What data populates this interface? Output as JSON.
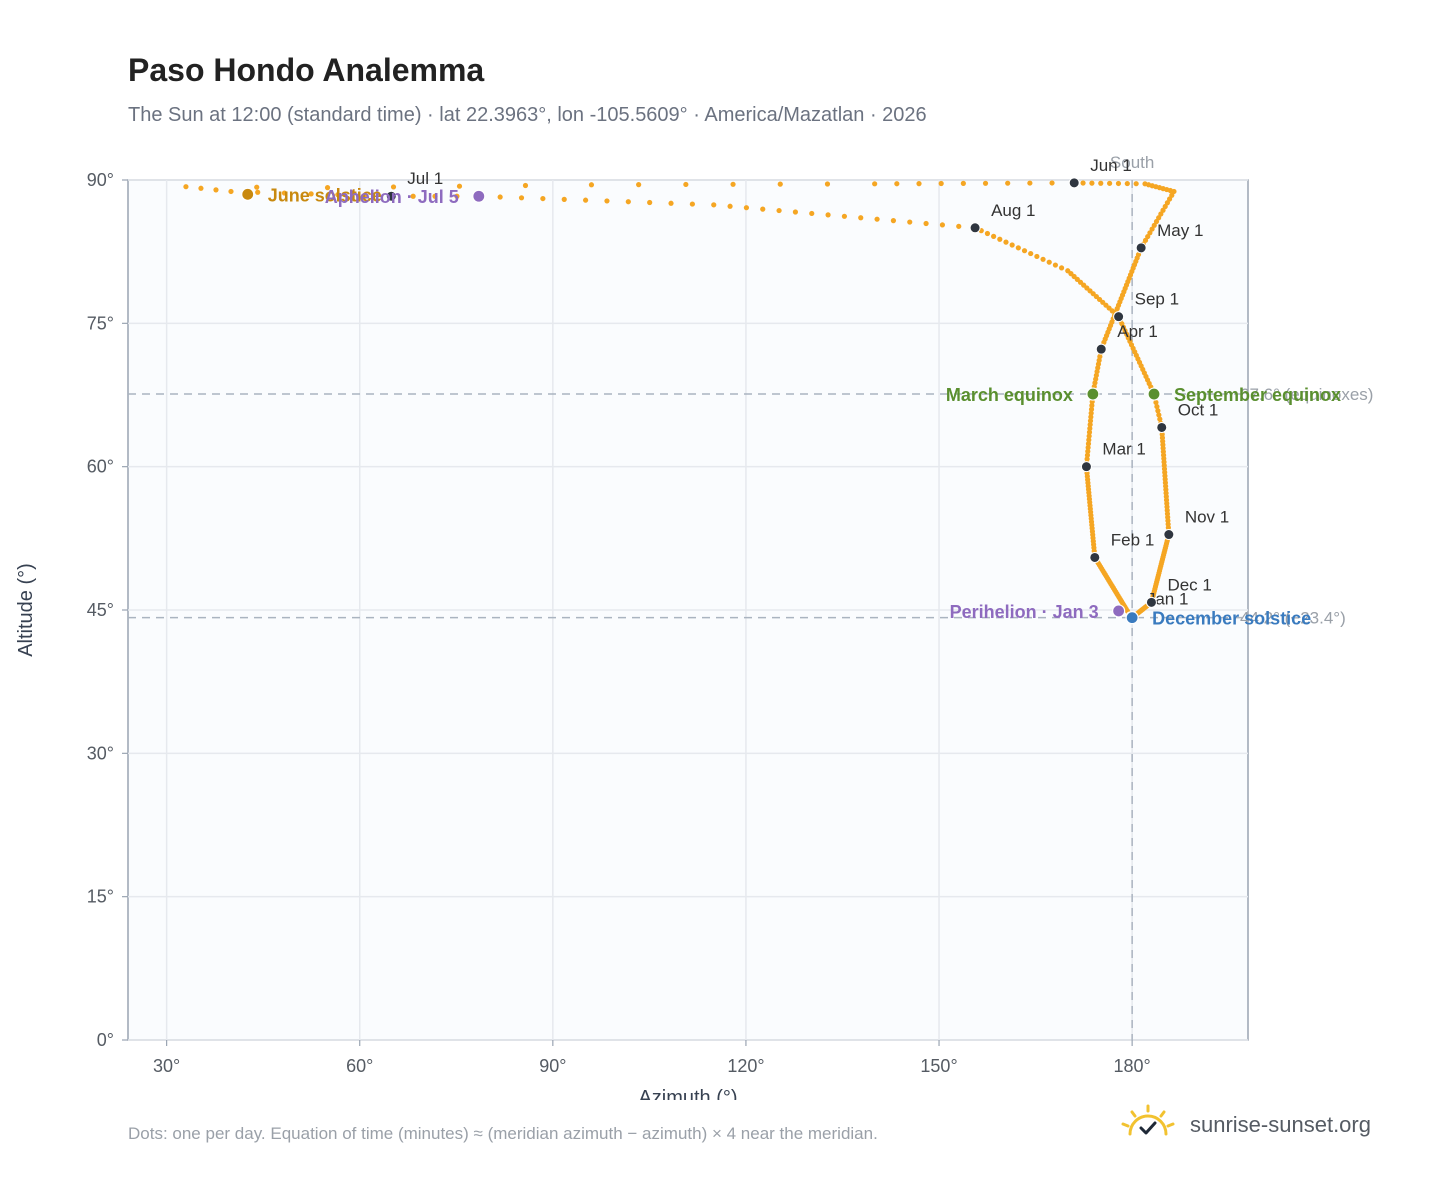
{
  "chart_data": {
    "type": "scatter",
    "title": "Paso Hondo Analemma",
    "subtitle": "The Sun at 12:00 (standard time) · lat 22.3963°, lon -105.5609° · America/Mazatlan · 2026",
    "xlabel": "Azimuth (°)",
    "ylabel": "Altitude (°)",
    "xlim": [
      24,
      198
    ],
    "ylim": [
      0,
      90
    ],
    "grid": true,
    "x_ticks": [
      {
        "value": 30,
        "label": "30°"
      },
      {
        "value": 60,
        "label": "60°"
      },
      {
        "value": 90,
        "label": "90°"
      },
      {
        "value": 120,
        "label": "120°"
      },
      {
        "value": 150,
        "label": "150°"
      },
      {
        "value": 180,
        "label": "180°"
      }
    ],
    "y_ticks": [
      {
        "value": 0,
        "label": "0°"
      },
      {
        "value": 15,
        "label": "15°"
      },
      {
        "value": 30,
        "label": "30°"
      },
      {
        "value": 45,
        "label": "45°"
      },
      {
        "value": 60,
        "label": "60°"
      },
      {
        "value": 75,
        "label": "75°"
      },
      {
        "value": 90,
        "label": "90°"
      }
    ],
    "series_color": "#f5a623",
    "path_anchors": [
      {
        "day": 0,
        "az": 179.8,
        "alt": 44.3
      },
      {
        "day": 31,
        "az": 174.2,
        "alt": 50.5
      },
      {
        "day": 59,
        "az": 172.9,
        "alt": 60.0
      },
      {
        "day": 78,
        "az": 173.9,
        "alt": 67.6
      },
      {
        "day": 90,
        "az": 175.2,
        "alt": 72.3
      },
      {
        "day": 120,
        "az": 181.4,
        "alt": 82.9
      },
      {
        "day": 135,
        "az": 186.5,
        "alt": 88.8
      },
      {
        "day": 143,
        "az": 182.0,
        "alt": 89.6
      },
      {
        "day": 151,
        "az": 171.0,
        "alt": 89.7
      },
      {
        "day": 160,
        "az": 140.0,
        "alt": 89.6
      },
      {
        "day": 166,
        "az": 96.0,
        "alt": 89.5
      },
      {
        "day": 170,
        "az": 55.0,
        "alt": 89.2
      },
      {
        "day": 172,
        "az": 33.0,
        "alt": 89.3
      },
      {
        "day": 175,
        "az": 40.0,
        "alt": 88.8
      },
      {
        "day": 181,
        "az": 64.9,
        "alt": 88.3
      },
      {
        "day": 185,
        "az": 78.5,
        "alt": 88.3
      },
      {
        "day": 196,
        "az": 115.0,
        "alt": 87.4
      },
      {
        "day": 212,
        "az": 155.6,
        "alt": 85.0
      },
      {
        "day": 227,
        "az": 170.0,
        "alt": 80.5
      },
      {
        "day": 243,
        "az": 177.9,
        "alt": 75.7
      },
      {
        "day": 265,
        "az": 183.4,
        "alt": 67.6
      },
      {
        "day": 273,
        "az": 184.6,
        "alt": 64.1
      },
      {
        "day": 304,
        "az": 185.7,
        "alt": 52.9
      },
      {
        "day": 334,
        "az": 183.0,
        "alt": 45.8
      },
      {
        "day": 354,
        "az": 180.0,
        "alt": 44.2
      },
      {
        "day": 364,
        "az": 179.8,
        "alt": 44.3
      }
    ],
    "month_markers": [
      {
        "label": "Jan 1",
        "az": 179.8,
        "alt": 44.3
      },
      {
        "label": "Feb 1",
        "az": 174.2,
        "alt": 50.5
      },
      {
        "label": "Mar 1",
        "az": 172.9,
        "alt": 60.0
      },
      {
        "label": "Apr 1",
        "az": 175.2,
        "alt": 72.3
      },
      {
        "label": "May 1",
        "az": 181.4,
        "alt": 82.9
      },
      {
        "label": "Jun 1",
        "az": 171.0,
        "alt": 89.7
      },
      {
        "label": "Jul 1",
        "az": 64.9,
        "alt": 88.3
      },
      {
        "label": "Aug 1",
        "az": 155.6,
        "alt": 85.0
      },
      {
        "label": "Sep 1",
        "az": 177.9,
        "alt": 75.7
      },
      {
        "label": "Oct 1",
        "az": 184.6,
        "alt": 64.1
      },
      {
        "label": "Nov 1",
        "az": 185.7,
        "alt": 52.9
      },
      {
        "label": "Dec 1",
        "az": 183.0,
        "alt": 45.8
      }
    ],
    "events": [
      {
        "label": "June solstice",
        "az": 42.6,
        "alt": 88.5,
        "color": "#c8890f",
        "side": "right"
      },
      {
        "label": "Aphelion · Jul 5",
        "az": 78.5,
        "alt": 88.3,
        "color": "#8e6bbf",
        "side": "left"
      },
      {
        "label": "March equinox",
        "az": 173.9,
        "alt": 67.6,
        "color": "#5a8f2f",
        "side": "left"
      },
      {
        "label": "September equinox",
        "az": 183.4,
        "alt": 67.6,
        "color": "#5a8f2f",
        "side": "right"
      },
      {
        "label": "Perihelion · Jan 3",
        "az": 177.9,
        "alt": 44.9,
        "color": "#8e6bbf",
        "side": "left"
      },
      {
        "label": "December solstice",
        "az": 180.0,
        "alt": 44.2,
        "color": "#3a7bbf",
        "side": "right"
      }
    ],
    "reference_lines": [
      {
        "orientation": "horizontal",
        "value": 67.6,
        "label": "67.6° (equinoxes)"
      },
      {
        "orientation": "horizontal",
        "value": 44.2,
        "label": "44.2° (−23.4°)"
      },
      {
        "orientation": "vertical",
        "value": 180,
        "label": "South"
      }
    ]
  },
  "footnote": "Dots: one per day. Equation of time (minutes) ≈ (meridian azimuth − azimuth) × 4 near the meridian.",
  "brand": {
    "name": "sunrise-sunset.org",
    "logo_icon": "sun-check-icon",
    "logo_color": "#f2c230"
  }
}
